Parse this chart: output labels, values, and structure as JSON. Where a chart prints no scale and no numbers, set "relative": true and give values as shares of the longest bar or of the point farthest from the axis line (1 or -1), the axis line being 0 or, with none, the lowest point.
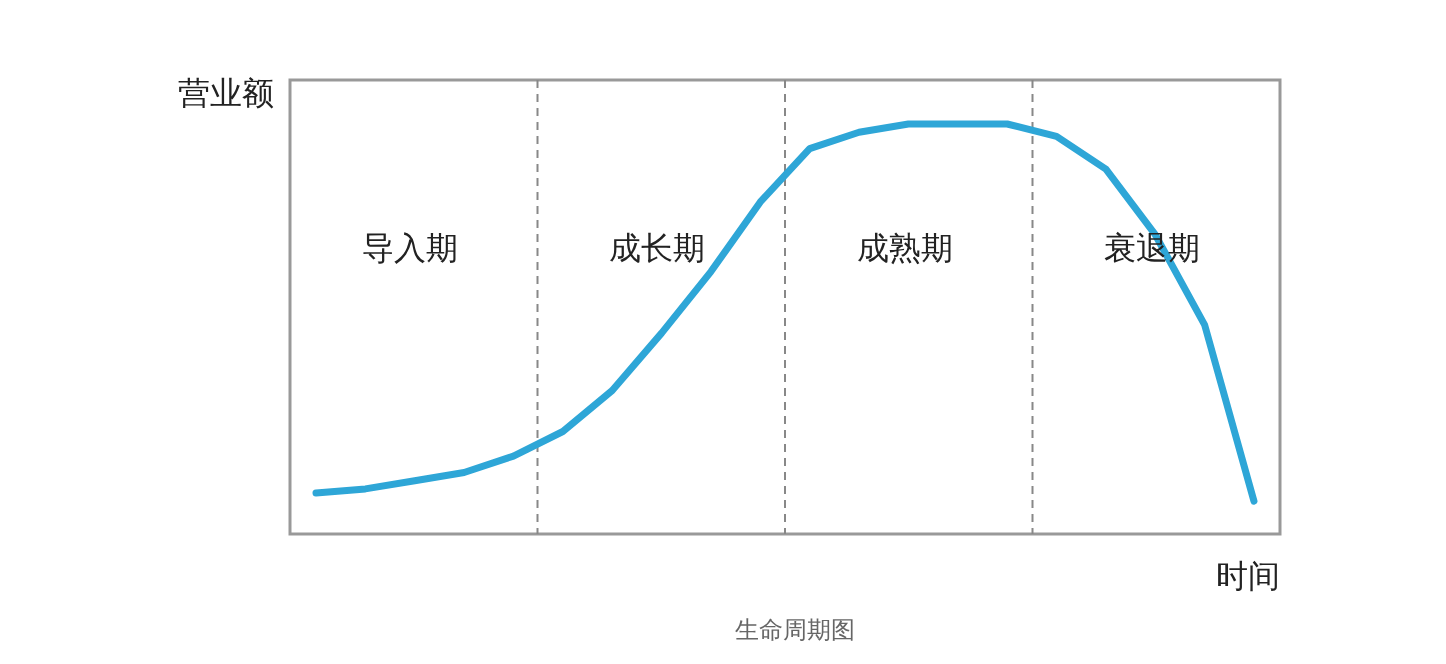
{
  "chart_data": {
    "type": "line",
    "title": "生命周期图",
    "xlabel": "时间",
    "ylabel": "营业额",
    "relative": true,
    "marker": "none",
    "line_style": "solid",
    "categories": [
      null,
      null,
      null,
      null,
      null,
      null,
      null,
      null,
      null,
      null,
      null,
      null,
      null,
      null,
      null,
      null,
      null,
      null,
      null,
      null
    ],
    "series": [
      {
        "color": "#2ea6d7",
        "values": [
          0.1,
          0.11,
          0.13,
          0.15,
          0.19,
          0.25,
          0.35,
          0.49,
          0.64,
          0.81,
          0.94,
          0.98,
          1,
          1,
          1,
          0.97,
          0.89,
          0.73,
          0.51,
          0.08
        ]
      }
    ],
    "annotations": [
      "导入期",
      "成长期",
      "成熟期",
      "衰退期"
    ]
  }
}
